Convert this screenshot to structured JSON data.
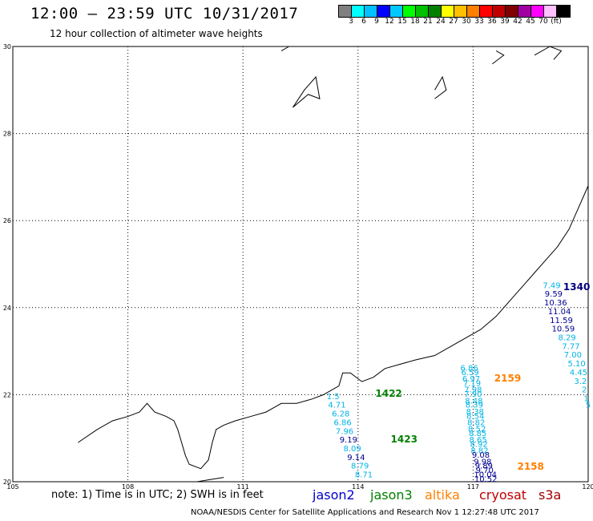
{
  "header": {
    "title": "12:00 – 23:59 UTC 10/31/2017",
    "subtitle": "12 hour collection of altimeter wave heights"
  },
  "colorbar": {
    "colors": [
      "#808080",
      "#00ffff",
      "#00c0ff",
      "#0000ff",
      "#00c8ff",
      "#00ff00",
      "#00c000",
      "#008000",
      "#ffff00",
      "#ffc000",
      "#ff8000",
      "#ff0000",
      "#c00000",
      "#800000",
      "#a000a0",
      "#ff00ff",
      "#ffc0ff",
      "#000000"
    ],
    "labels": [
      "3",
      "6",
      "9",
      "12",
      "15",
      "18",
      "21",
      "24",
      "27",
      "30",
      "33",
      "36",
      "39",
      "42",
      "45",
      "70",
      "(ft)"
    ]
  },
  "chart_data": {
    "type": "scatter",
    "title": "12:00 – 23:59 UTC 10/31/2017",
    "subtitle": "12 hour collection of altimeter wave heights",
    "xlabel": "",
    "ylabel": "",
    "xlim": [
      105,
      120
    ],
    "ylim": [
      20,
      30
    ],
    "x_ticks": [
      "105",
      "108",
      "111",
      "114",
      "117",
      "120"
    ],
    "y_ticks": [
      "20",
      "22",
      "24",
      "26",
      "28",
      "30"
    ],
    "grid": true,
    "units": "ft",
    "passes": [
      {
        "satellite": "jason3",
        "color": "#008000",
        "labels": [
          {
            "text": "1422",
            "lon": 114.8,
            "lat": 21.95
          },
          {
            "text": "1423",
            "lon": 115.2,
            "lat": 20.9
          }
        ]
      },
      {
        "satellite": "altika",
        "color": "#ff8000",
        "labels": [
          {
            "text": "2159",
            "lon": 117.9,
            "lat": 22.3
          },
          {
            "text": "2158",
            "lon": 118.5,
            "lat": 20.28
          }
        ]
      },
      {
        "satellite": "jason2",
        "color": "#000080",
        "labels": [
          {
            "text": "1340",
            "lon": 119.7,
            "lat": 24.4
          }
        ]
      }
    ],
    "tracks": [
      {
        "name": "track-a",
        "points": [
          {
            "lon": 113.35,
            "lat": 21.9,
            "swh": "1.5"
          },
          {
            "lon": 113.45,
            "lat": 21.7,
            "swh": "4.71"
          },
          {
            "lon": 113.55,
            "lat": 21.5,
            "swh": "6.28"
          },
          {
            "lon": 113.6,
            "lat": 21.3,
            "swh": "6.86"
          },
          {
            "lon": 113.65,
            "lat": 21.1,
            "swh": "7.96"
          },
          {
            "lon": 113.75,
            "lat": 20.9,
            "swh": "9.19"
          },
          {
            "lon": 113.85,
            "lat": 20.7,
            "swh": "8.09"
          },
          {
            "lon": 113.95,
            "lat": 20.5,
            "swh": "9.14"
          },
          {
            "lon": 114.05,
            "lat": 20.3,
            "swh": "8.79"
          },
          {
            "lon": 114.15,
            "lat": 20.1,
            "swh": "8.71"
          }
        ]
      },
      {
        "name": "track-b",
        "points": [
          {
            "lon": 116.9,
            "lat": 22.55,
            "swh": "6.86"
          },
          {
            "lon": 116.92,
            "lat": 22.45,
            "swh": "6.59"
          },
          {
            "lon": 116.95,
            "lat": 22.3,
            "swh": "6.97"
          },
          {
            "lon": 116.97,
            "lat": 22.2,
            "swh": "7.19"
          },
          {
            "lon": 117.0,
            "lat": 22.05,
            "swh": "7.98"
          },
          {
            "lon": 117.0,
            "lat": 21.95,
            "swh": "7.90"
          },
          {
            "lon": 117.02,
            "lat": 21.8,
            "swh": "8.48"
          },
          {
            "lon": 117.03,
            "lat": 21.7,
            "swh": "8.39"
          },
          {
            "lon": 117.05,
            "lat": 21.55,
            "swh": "8.38"
          },
          {
            "lon": 117.06,
            "lat": 21.45,
            "swh": "8.54"
          },
          {
            "lon": 117.08,
            "lat": 21.3,
            "swh": "8.82"
          },
          {
            "lon": 117.1,
            "lat": 21.15,
            "swh": "8.52"
          },
          {
            "lon": 117.12,
            "lat": 21.05,
            "swh": "8.85"
          },
          {
            "lon": 117.13,
            "lat": 20.9,
            "swh": "8.65"
          },
          {
            "lon": 117.15,
            "lat": 20.8,
            "swh": "8.92"
          },
          {
            "lon": 117.17,
            "lat": 20.65,
            "swh": "8.82"
          },
          {
            "lon": 117.2,
            "lat": 20.55,
            "swh": "9.08"
          },
          {
            "lon": 117.25,
            "lat": 20.4,
            "swh": "9.98"
          },
          {
            "lon": 117.28,
            "lat": 20.3,
            "swh": "9.89"
          },
          {
            "lon": 117.3,
            "lat": 20.2,
            "swh": "9.70"
          },
          {
            "lon": 117.32,
            "lat": 20.1,
            "swh": "10.04"
          },
          {
            "lon": 117.33,
            "lat": 20.0,
            "swh": "10.52"
          }
        ]
      },
      {
        "name": "track-c",
        "points": [
          {
            "lon": 119.05,
            "lat": 24.45,
            "swh": "7.49"
          },
          {
            "lon": 119.1,
            "lat": 24.25,
            "swh": "9.59"
          },
          {
            "lon": 119.15,
            "lat": 24.05,
            "swh": "10.36"
          },
          {
            "lon": 119.25,
            "lat": 23.85,
            "swh": "11.04"
          },
          {
            "lon": 119.3,
            "lat": 23.65,
            "swh": "11.59"
          },
          {
            "lon": 119.35,
            "lat": 23.45,
            "swh": "10.59"
          },
          {
            "lon": 119.45,
            "lat": 23.25,
            "swh": "8.29"
          },
          {
            "lon": 119.55,
            "lat": 23.05,
            "swh": "7.77"
          },
          {
            "lon": 119.6,
            "lat": 22.85,
            "swh": "7.00"
          },
          {
            "lon": 119.7,
            "lat": 22.65,
            "swh": "5.10"
          },
          {
            "lon": 119.75,
            "lat": 22.45,
            "swh": "4.45"
          },
          {
            "lon": 119.8,
            "lat": 22.25,
            "swh": "3.2"
          },
          {
            "lon": 119.9,
            "lat": 22.05,
            "swh": "2"
          },
          {
            "lon": 119.95,
            "lat": 21.85,
            "swh": "1"
          },
          {
            "lon": 120.0,
            "lat": 21.7,
            "swh": "5"
          }
        ]
      }
    ]
  },
  "legend": {
    "note": "note:  1) Time is in UTC;  2) SWH is in feet",
    "satellites": [
      {
        "label": "jason2",
        "color": "#0000cc"
      },
      {
        "label": "jason3",
        "color": "#008000"
      },
      {
        "label": "altika",
        "color": "#ff8000"
      },
      {
        "label": "cryosat",
        "color": "#c00000"
      },
      {
        "label": "s3a",
        "color": "#a00000"
      }
    ]
  },
  "footer": {
    "text": "NOAA/NESDIS Center for Satellite Applications and Research     Nov  1 12:27:48 UTC 2017"
  }
}
